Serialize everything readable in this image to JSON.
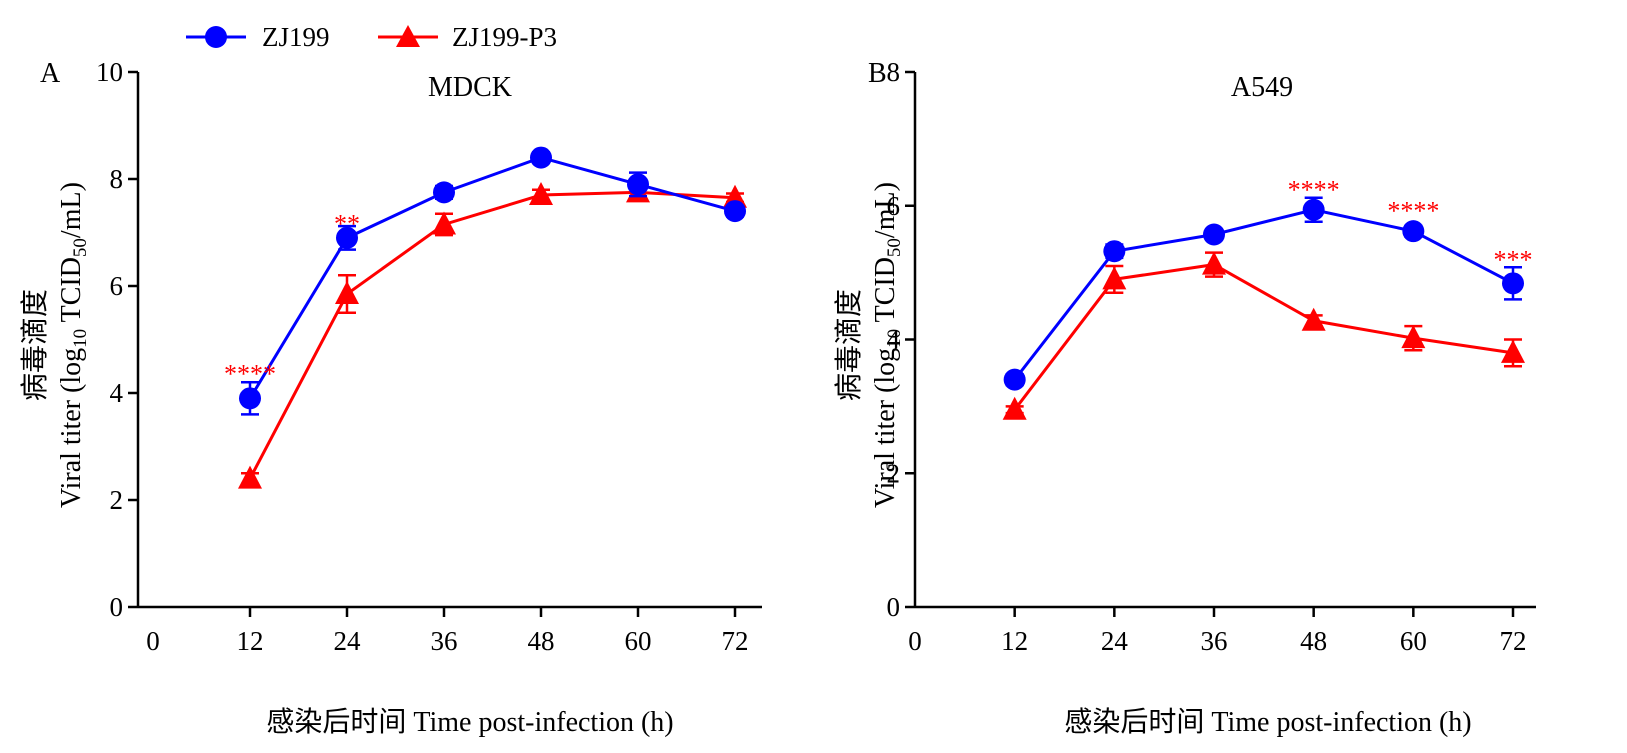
{
  "legend": [
    {
      "name": "ZJ199",
      "color": "#0000ff",
      "marker": "circle"
    },
    {
      "name": "ZJ199-P3",
      "color": "#ff0000",
      "marker": "triangle"
    }
  ],
  "chart_data": [
    {
      "type": "line",
      "panel": "A",
      "title": "MDCK",
      "xlabel": "感染后时间 Time post-infection (h)",
      "ylabel_cn": "病毒滴度",
      "ylabel_prefix": "Viral titer (log",
      "ylabel_sub1": "10",
      "ylabel_mid": " TCID",
      "ylabel_sub2": "50",
      "ylabel_suffix": "/mL)",
      "xlim": [
        0,
        72
      ],
      "ylim": [
        0,
        10
      ],
      "xticks": [
        0,
        12,
        24,
        36,
        48,
        60,
        72
      ],
      "yticks": [
        0,
        2,
        4,
        6,
        8,
        10
      ],
      "x": [
        12,
        24,
        36,
        48,
        60,
        72
      ],
      "series": [
        {
          "name": "ZJ199",
          "values": [
            3.9,
            6.9,
            7.75,
            8.4,
            7.9,
            7.4
          ],
          "errors": [
            0.3,
            0.22,
            0.12,
            0.1,
            0.22,
            0.1
          ]
        },
        {
          "name": "ZJ199-P3",
          "values": [
            2.4,
            5.85,
            7.15,
            7.7,
            7.75,
            7.65
          ],
          "errors": [
            0.1,
            0.35,
            0.2,
            0.1,
            0.15,
            0.08
          ]
        }
      ],
      "annotations": [
        {
          "x": 12,
          "y": 4.5,
          "text": "****"
        },
        {
          "x": 24,
          "y": 7.3,
          "text": "**"
        }
      ]
    },
    {
      "type": "line",
      "panel": "B",
      "title": "A549",
      "xlabel": "感染后时间 Time post-infection (h)",
      "ylabel_cn": "病毒滴度",
      "ylabel_prefix": "Viral titer (log",
      "ylabel_sub1": "10",
      "ylabel_mid": " TCID",
      "ylabel_sub2": "50",
      "ylabel_suffix": "/mL)",
      "xlim": [
        0,
        72
      ],
      "ylim": [
        0,
        8
      ],
      "xticks": [
        0,
        12,
        24,
        36,
        48,
        60,
        72
      ],
      "yticks": [
        0,
        2,
        4,
        6,
        8
      ],
      "x": [
        12,
        24,
        36,
        48,
        60,
        72
      ],
      "series": [
        {
          "name": "ZJ199",
          "values": [
            3.4,
            5.32,
            5.57,
            5.94,
            5.62,
            4.84
          ],
          "errors": [
            0.08,
            0.1,
            0.08,
            0.18,
            0.08,
            0.24
          ]
        },
        {
          "name": "ZJ199-P3",
          "values": [
            2.95,
            4.9,
            5.12,
            4.28,
            4.02,
            3.8
          ],
          "errors": [
            0.05,
            0.2,
            0.18,
            0.08,
            0.18,
            0.2
          ]
        }
      ],
      "annotations": [
        {
          "x": 48,
          "y": 6.35,
          "text": "****"
        },
        {
          "x": 60,
          "y": 6.03,
          "text": "****"
        },
        {
          "x": 72,
          "y": 5.3,
          "text": "***"
        }
      ]
    }
  ]
}
